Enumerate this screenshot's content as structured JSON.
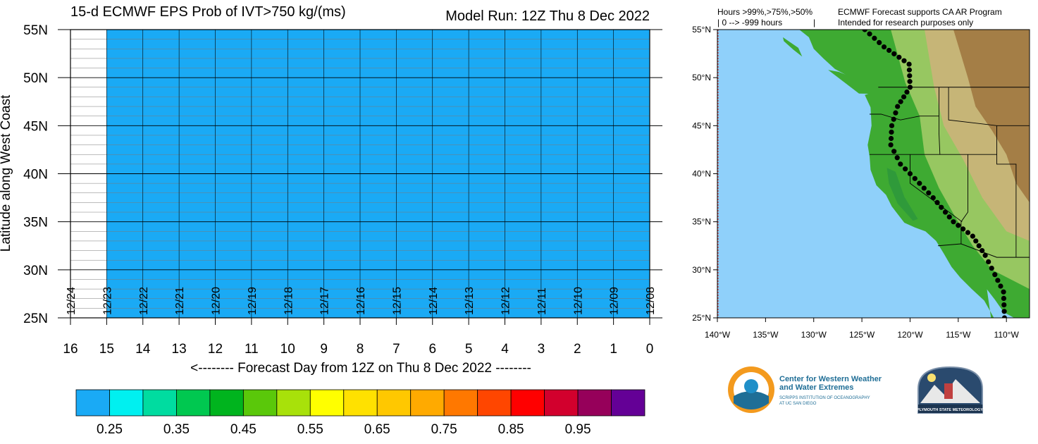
{
  "header": {
    "title": "15-d ECMWF EPS Prob of IVT>750 kg/(ms)",
    "model_run": "Model Run: 12Z Thu 8 Dec 2022"
  },
  "chart_data": [
    {
      "type": "heatmap",
      "title": "15-d ECMWF EPS Prob of IVT>750 kg/(ms)",
      "subtitle": "Model Run: 12Z Thu 8 Dec 2022",
      "xlabel": "<-------- Forecast Day from 12Z on Thu 8 Dec 2022 --------",
      "ylabel": "Latitude along West Coast",
      "x_ticks": [
        16,
        15,
        14,
        13,
        12,
        11,
        10,
        9,
        8,
        7,
        6,
        5,
        4,
        3,
        2,
        1,
        0
      ],
      "x_reversed": true,
      "xlim": [
        0,
        16
      ],
      "ylim": [
        25,
        55
      ],
      "y_ticks": [
        25,
        30,
        35,
        40,
        45,
        50,
        55
      ],
      "y_tick_labels": [
        "25N",
        "30N",
        "35N",
        "40N",
        "45N",
        "50N",
        "55N"
      ],
      "date_labels": [
        {
          "day": 16,
          "label": "12/24"
        },
        {
          "day": 15,
          "label": "12/23"
        },
        {
          "day": 14,
          "label": "12/22"
        },
        {
          "day": 13,
          "label": "12/21"
        },
        {
          "day": 12,
          "label": "12/20"
        },
        {
          "day": 11,
          "label": "12/19"
        },
        {
          "day": 10,
          "label": "12/18"
        },
        {
          "day": 9,
          "label": "12/17"
        },
        {
          "day": 8,
          "label": "12/16"
        },
        {
          "day": 7,
          "label": "12/15"
        },
        {
          "day": 6,
          "label": "12/14"
        },
        {
          "day": 5,
          "label": "12/13"
        },
        {
          "day": 4,
          "label": "12/12"
        },
        {
          "day": 3,
          "label": "12/11"
        },
        {
          "day": 2,
          "label": "12/10"
        },
        {
          "day": 1,
          "label": "12/09"
        },
        {
          "day": 0,
          "label": "12/08"
        }
      ],
      "filled_region": {
        "days": [
          0,
          15
        ],
        "lat": [
          25,
          55
        ],
        "value_bin": "<0.25",
        "color": "#1aaaf5"
      },
      "grid": true
    },
    {
      "type": "colorbar",
      "colors": [
        "#1aaaf5",
        "#00f0f0",
        "#00dca0",
        "#00c850",
        "#00b41e",
        "#5ac80a",
        "#a8e10a",
        "#ffff00",
        "#ffe100",
        "#ffc800",
        "#ffaa00",
        "#ff7800",
        "#ff4600",
        "#ff0000",
        "#d2002d",
        "#96005a",
        "#640096"
      ],
      "tick_labels": [
        "0.25",
        "0.35",
        "0.45",
        "0.55",
        "0.65",
        "0.75",
        "0.85",
        "0.95"
      ]
    }
  ],
  "map": {
    "header_left_1": "Hours >99%,>75%,>50%",
    "header_left_2": "| 0 --> -999 hours",
    "header_sep": "|",
    "header_right_1": "ECMWF Forecast supports CA AR Program",
    "header_right_2": "Intended for research purposes only",
    "lat_labels": [
      "55°N",
      "50°N",
      "45°N",
      "40°N",
      "35°N",
      "30°N",
      "25°N"
    ],
    "lon_labels": [
      "140°W",
      "135°W",
      "130°W",
      "125°W",
      "120°W",
      "115°W",
      "110°W"
    ],
    "lats": [
      55,
      50,
      45,
      40,
      35,
      30,
      25
    ],
    "lons": [
      -140,
      -135,
      -130,
      -125,
      -120,
      -115,
      -110
    ],
    "colors": {
      "ocean": "#8fd0fa",
      "land_low": "#3eaa32",
      "land_mid": "#9cc864",
      "land_high": "#c8b478",
      "land_peak": "#a07840"
    }
  },
  "logos": {
    "cw3e_line1": "Center for Western Weather",
    "cw3e_line2": "and Water Extremes",
    "cw3e_line3": "SCRIPPS INSTITUTION OF OCEANOGRAPHY",
    "cw3e_line4": "AT UC SAN DIEGO",
    "plymouth": "PLYMOUTH STATE METEOROLOGY"
  }
}
